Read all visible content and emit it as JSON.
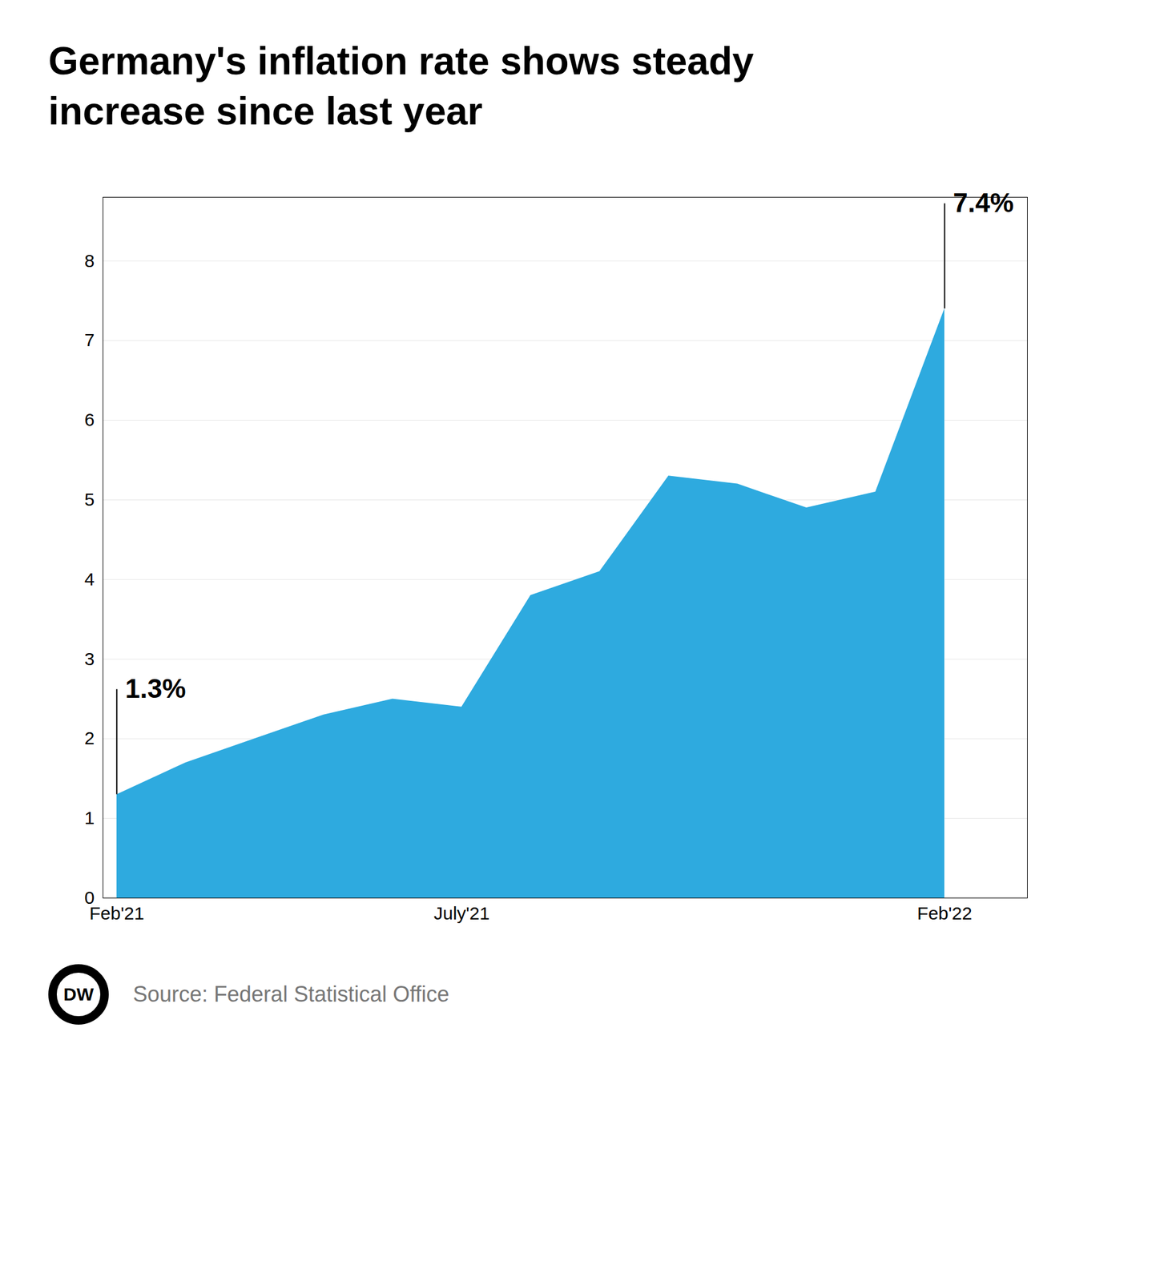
{
  "chart_data": {
    "type": "area",
    "title": "Germany's inflation rate shows steady\nincrease since last year",
    "x": [
      0,
      1,
      2,
      3,
      4,
      5,
      6,
      7,
      8,
      9,
      10,
      11,
      12
    ],
    "values": [
      1.3,
      1.7,
      2.0,
      2.3,
      2.5,
      2.4,
      3.8,
      4.1,
      5.3,
      5.2,
      4.9,
      5.1,
      7.4
    ],
    "color": "#2eaadf",
    "xlim": [
      -0.2,
      13.2
    ],
    "xticks": [
      {
        "value": 0,
        "label": "Feb'21"
      },
      {
        "value": 5,
        "label": "July'21"
      },
      {
        "value": 12,
        "label": "Feb'22"
      }
    ],
    "ylim": [
      0,
      8.8
    ],
    "yticks": [
      0,
      1,
      2,
      3,
      4,
      5,
      6,
      7,
      8
    ],
    "grid": true,
    "annotations": [
      {
        "text": "1.3%",
        "x": 0,
        "y": 1.3
      },
      {
        "text": "7.4%",
        "x": 12,
        "y": 7.4
      }
    ],
    "caption": "Source: Federal Statistical Office",
    "logo": "DW"
  }
}
